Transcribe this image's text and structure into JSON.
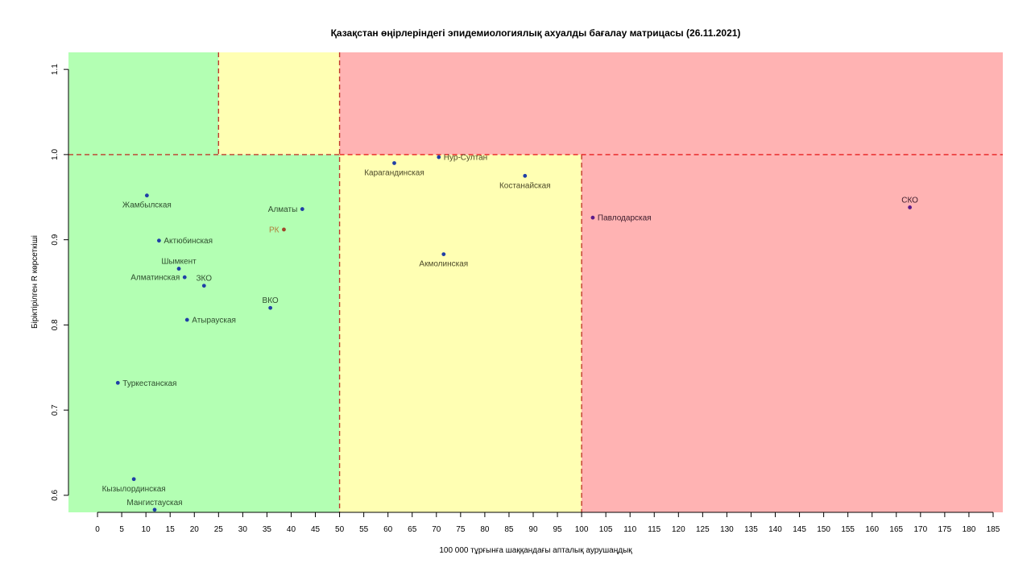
{
  "chart_data": {
    "type": "scatter",
    "title": "Қазақстан өңірлеріндегі эпидемиологиялық ахуалды бағалау матрицасы  (26.11.2021)",
    "xlabel": "100 000 тұрғынға шаққандағы апталық аурушаңдық",
    "ylabel": "Біріктірілген R көрсеткіші",
    "xlim": [
      -6,
      187
    ],
    "ylim": [
      0.58,
      1.12
    ],
    "x_ticks": [
      0,
      5,
      10,
      15,
      20,
      25,
      30,
      35,
      40,
      45,
      50,
      55,
      60,
      65,
      70,
      75,
      80,
      85,
      90,
      95,
      100,
      105,
      110,
      115,
      120,
      125,
      130,
      135,
      140,
      145,
      150,
      155,
      160,
      165,
      170,
      175,
      180,
      185
    ],
    "y_ticks": [
      0.6,
      0.7,
      0.8,
      0.9,
      1.0,
      1.1
    ],
    "y_tick_labels": [
      "0.6",
      "0.7",
      "0.8",
      "0.9",
      "1.0",
      "1.1"
    ],
    "grid": false,
    "zones": [
      {
        "name": "green",
        "color": "#b3ffb3",
        "x": [
          -6,
          50
        ],
        "y": [
          0.58,
          1.0
        ]
      },
      {
        "name": "green",
        "color": "#b3ffb3",
        "x": [
          -6,
          25
        ],
        "y": [
          1.0,
          1.12
        ]
      },
      {
        "name": "yellow",
        "color": "#ffffb3",
        "x": [
          25,
          50
        ],
        "y": [
          1.0,
          1.12
        ]
      },
      {
        "name": "yellow",
        "color": "#ffffb3",
        "x": [
          50,
          100
        ],
        "y": [
          0.58,
          1.0
        ]
      },
      {
        "name": "red",
        "color": "#ffb3b3",
        "x": [
          50,
          187
        ],
        "y": [
          1.0,
          1.12
        ]
      },
      {
        "name": "red",
        "color": "#ffb3b3",
        "x": [
          100,
          187
        ],
        "y": [
          0.58,
          1.0
        ]
      }
    ],
    "reference_lines": [
      {
        "orientation": "vertical",
        "x": 25,
        "y": [
          1.0,
          1.12
        ],
        "color": "#c0392b"
      },
      {
        "orientation": "vertical",
        "x": 50,
        "y": [
          0.58,
          1.12
        ],
        "color": "#c0392b"
      },
      {
        "orientation": "vertical",
        "x": 100,
        "y": [
          0.58,
          1.0
        ],
        "color": "#c0392b"
      },
      {
        "orientation": "horizontal",
        "y": 1.0,
        "x": [
          -6,
          50
        ],
        "color": "#c0392b"
      },
      {
        "orientation": "horizontal",
        "y": 1.0,
        "x": [
          50,
          187
        ],
        "color": "#e82020"
      }
    ],
    "points": [
      {
        "label": "Жамбылская",
        "x": 10.2,
        "y": 0.952,
        "label_pos": "below",
        "point_color": "#1f3fa6",
        "label_color": "#2f4f2f"
      },
      {
        "label": "Актюбинская",
        "x": 12.7,
        "y": 0.899,
        "label_pos": "right",
        "point_color": "#1f3fa6",
        "label_color": "#2f4f2f"
      },
      {
        "label": "Шымкент",
        "x": 16.8,
        "y": 0.866,
        "label_pos": "above",
        "point_color": "#1f3fa6",
        "label_color": "#2f4f2f"
      },
      {
        "label": "Алматинская",
        "x": 18.0,
        "y": 0.856,
        "label_pos": "left",
        "point_color": "#1f3fa6",
        "label_color": "#2f4f2f"
      },
      {
        "label": "ЗКО",
        "x": 22.0,
        "y": 0.846,
        "label_pos": "above",
        "point_color": "#1f3fa6",
        "label_color": "#2f4f2f"
      },
      {
        "label": "Атырауская",
        "x": 18.5,
        "y": 0.806,
        "label_pos": "right",
        "point_color": "#1f3fa6",
        "label_color": "#2f4f2f"
      },
      {
        "label": "ВКО",
        "x": 35.7,
        "y": 0.82,
        "label_pos": "above",
        "point_color": "#1f3fa6",
        "label_color": "#2f4f2f"
      },
      {
        "label": "Алматы",
        "x": 42.3,
        "y": 0.936,
        "label_pos": "left",
        "point_color": "#1f3fa6",
        "label_color": "#2f4f2f"
      },
      {
        "label": "РК",
        "x": 38.5,
        "y": 0.912,
        "label_pos": "left",
        "point_color": "#a0462a",
        "label_color": "#b07d3a"
      },
      {
        "label": "Туркестанская",
        "x": 4.2,
        "y": 0.732,
        "label_pos": "right",
        "point_color": "#1f3fa6",
        "label_color": "#2f4f2f"
      },
      {
        "label": "Кызылординская",
        "x": 7.5,
        "y": 0.619,
        "label_pos": "below",
        "point_color": "#1f3fa6",
        "label_color": "#2f4f2f"
      },
      {
        "label": "Мангистауская",
        "x": 11.8,
        "y": 0.583,
        "label_pos": "above",
        "point_color": "#1f3fa6",
        "label_color": "#2f4f2f"
      },
      {
        "label": "Нур-Султан",
        "x": 70.5,
        "y": 0.997,
        "label_pos": "right",
        "point_color": "#1f3fa6",
        "label_color": "#4d4a2a"
      },
      {
        "label": "Карагандинская",
        "x": 61.3,
        "y": 0.99,
        "label_pos": "below",
        "point_color": "#1f3fa6",
        "label_color": "#4d4a2a"
      },
      {
        "label": "Костанайская",
        "x": 88.3,
        "y": 0.975,
        "label_pos": "below",
        "point_color": "#1f3fa6",
        "label_color": "#4d4a2a"
      },
      {
        "label": "Акмолинская",
        "x": 71.5,
        "y": 0.883,
        "label_pos": "below",
        "point_color": "#1f3fa6",
        "label_color": "#4d4a2a"
      },
      {
        "label": "Павлодарская",
        "x": 102.3,
        "y": 0.926,
        "label_pos": "right",
        "point_color": "#5a1a8a",
        "label_color": "#3a1a2a"
      },
      {
        "label": "СКО",
        "x": 167.8,
        "y": 0.938,
        "label_pos": "above",
        "point_color": "#5a1a8a",
        "label_color": "#3a1a2a"
      }
    ]
  }
}
